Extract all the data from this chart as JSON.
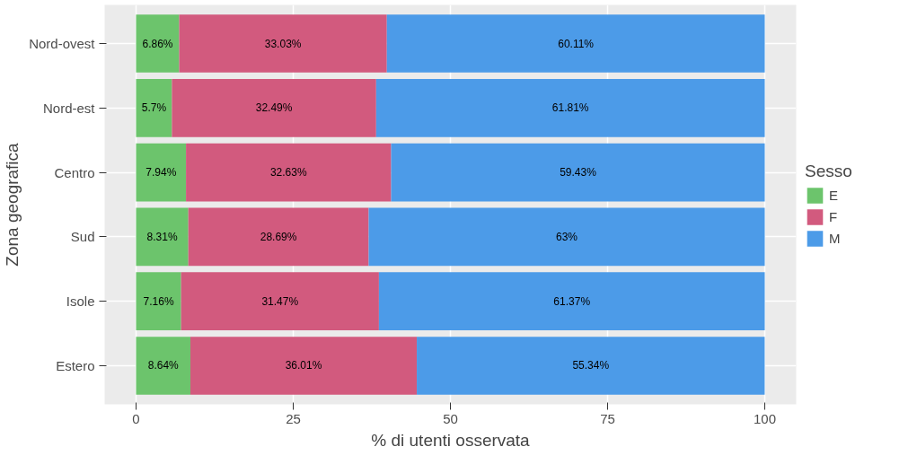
{
  "chart_data": {
    "type": "bar",
    "orientation": "horizontal",
    "stacked": true,
    "xlabel": "% di utenti osservata",
    "ylabel": "Zona geografica",
    "legend_title": "Sesso",
    "legend": "right",
    "grid": true,
    "categories": [
      "Nord-ovest",
      "Nord-est",
      "Centro",
      "Sud",
      "Isole",
      "Estero"
    ],
    "xlim": [
      -5,
      105
    ],
    "xticks": [
      0,
      25,
      50,
      75,
      100
    ],
    "series": [
      {
        "name": "E",
        "color": "#6cc46c",
        "values": [
          6.86,
          5.7,
          7.94,
          8.31,
          7.16,
          8.64
        ],
        "value_labels": [
          "6.86%",
          "5.7%",
          "7.94%",
          "8.31%",
          "7.16%",
          "8.64%"
        ]
      },
      {
        "name": "F",
        "color": "#d25a7e",
        "values": [
          33.03,
          32.49,
          32.63,
          28.69,
          31.47,
          36.01
        ],
        "value_labels": [
          "33.03%",
          "32.49%",
          "32.63%",
          "28.69%",
          "31.47%",
          "36.01%"
        ]
      },
      {
        "name": "M",
        "color": "#4c9be8",
        "values": [
          60.11,
          61.81,
          59.43,
          63,
          61.37,
          55.34
        ],
        "value_labels": [
          "60.11%",
          "61.81%",
          "59.43%",
          "63%",
          "61.37%",
          "55.34%"
        ]
      }
    ]
  }
}
